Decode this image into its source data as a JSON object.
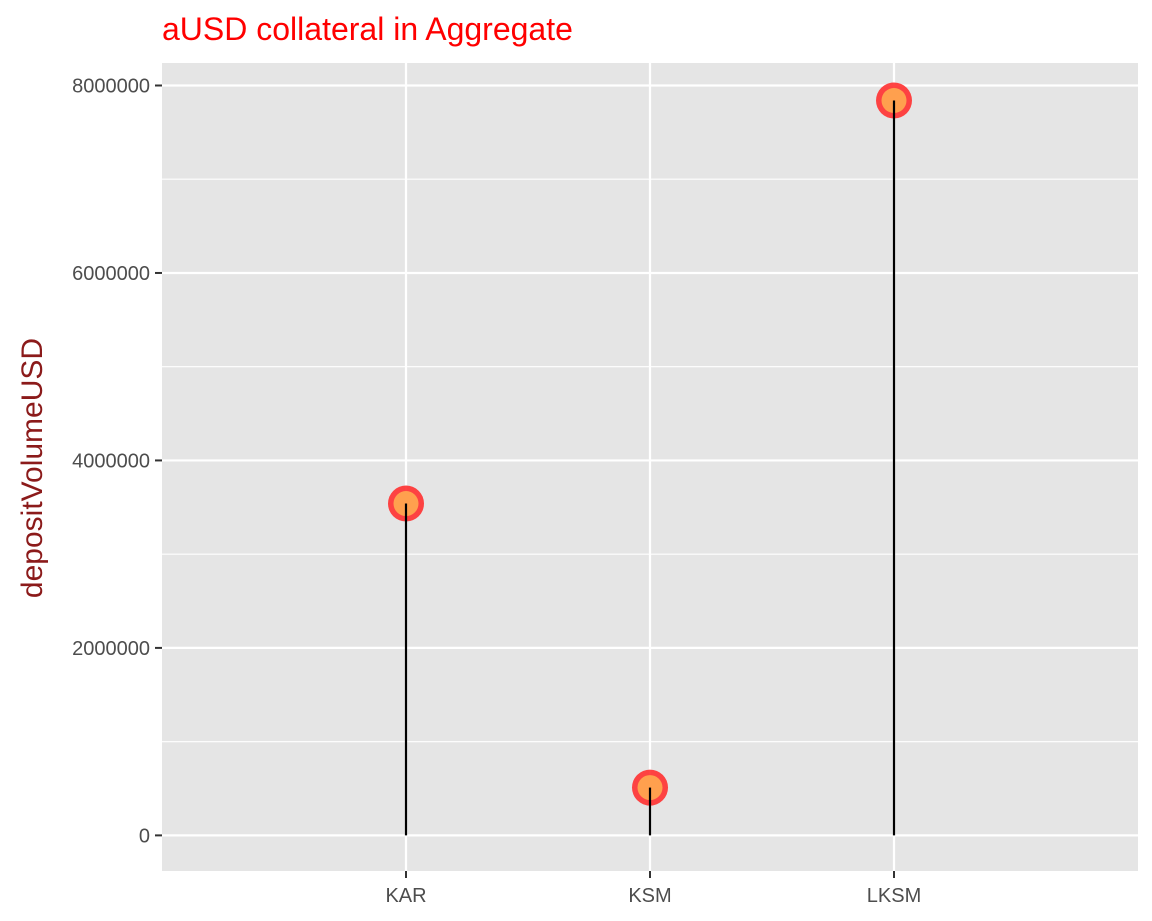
{
  "colors": {
    "title": "#ff0000",
    "ylabel": "#8b1a1a",
    "panel": "#e5e5e5",
    "grid": "#ffffff",
    "segment": "#000000",
    "point_fill": "#ffa54f",
    "point_stroke": "#ff3030"
  },
  "chart_data": {
    "type": "lollipop",
    "title": "aUSD collateral in Aggregate",
    "xlabel": "",
    "ylabel": "depositVolumeUSD",
    "categories": [
      "KAR",
      "KSM",
      "LKSM"
    ],
    "values": [
      3540000,
      510000,
      7840000
    ],
    "ylim": [
      -380000,
      8240000
    ],
    "yticks": [
      0,
      2000000,
      4000000,
      6000000,
      8000000
    ],
    "ytick_labels": [
      "0",
      "2000000",
      "4000000",
      "6000000",
      "8000000"
    ],
    "grid": true
  }
}
